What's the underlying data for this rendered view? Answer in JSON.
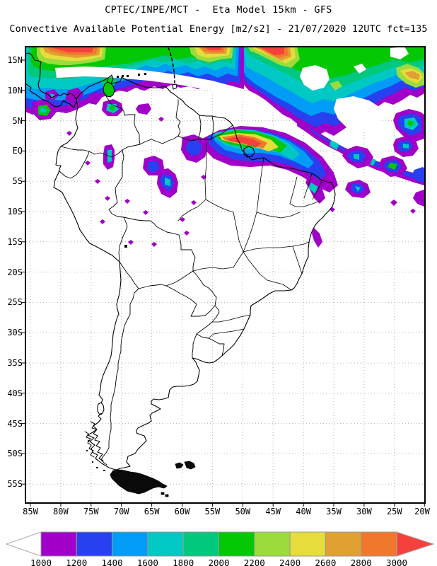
{
  "header": {
    "title": "CPTEC/INPE/MCT -  Eta Model 15km - GFS",
    "subtitle": "Convective Available Potential Energy [m2/s2] - 21/07/2020 12UTC fct=135"
  },
  "map": {
    "region": "South America",
    "lat_labels": [
      "15N",
      "10N",
      "5N",
      "EQ",
      "5S",
      "10S",
      "15S",
      "20S",
      "25S",
      "30S",
      "35S",
      "40S",
      "45S",
      "50S",
      "55S"
    ],
    "lon_labels": [
      "85W",
      "80W",
      "75W",
      "70W",
      "65W",
      "60W",
      "55W",
      "50W",
      "45W",
      "40W",
      "35W",
      "30W",
      "25W",
      "20W"
    ]
  },
  "colorbar": {
    "tick_labels": [
      "1000",
      "1200",
      "1400",
      "1600",
      "1800",
      "2000",
      "2200",
      "2400",
      "2600",
      "2800",
      "3000"
    ],
    "segment_colors": [
      "#A000C8",
      "#2841F0",
      "#009CF5",
      "#00C8C3",
      "#00C87D",
      "#05C805",
      "#9BDC3C",
      "#E6DC3C",
      "#E1A032",
      "#F0782D"
    ],
    "under_arrow_color": "#FFFFFF",
    "over_arrow_color": "#F5413C"
  },
  "styles": {
    "grid_color": "#B4B4B4",
    "coast_color": "#000000",
    "frame_color": "#000000",
    "background": "#FFFFFF"
  }
}
